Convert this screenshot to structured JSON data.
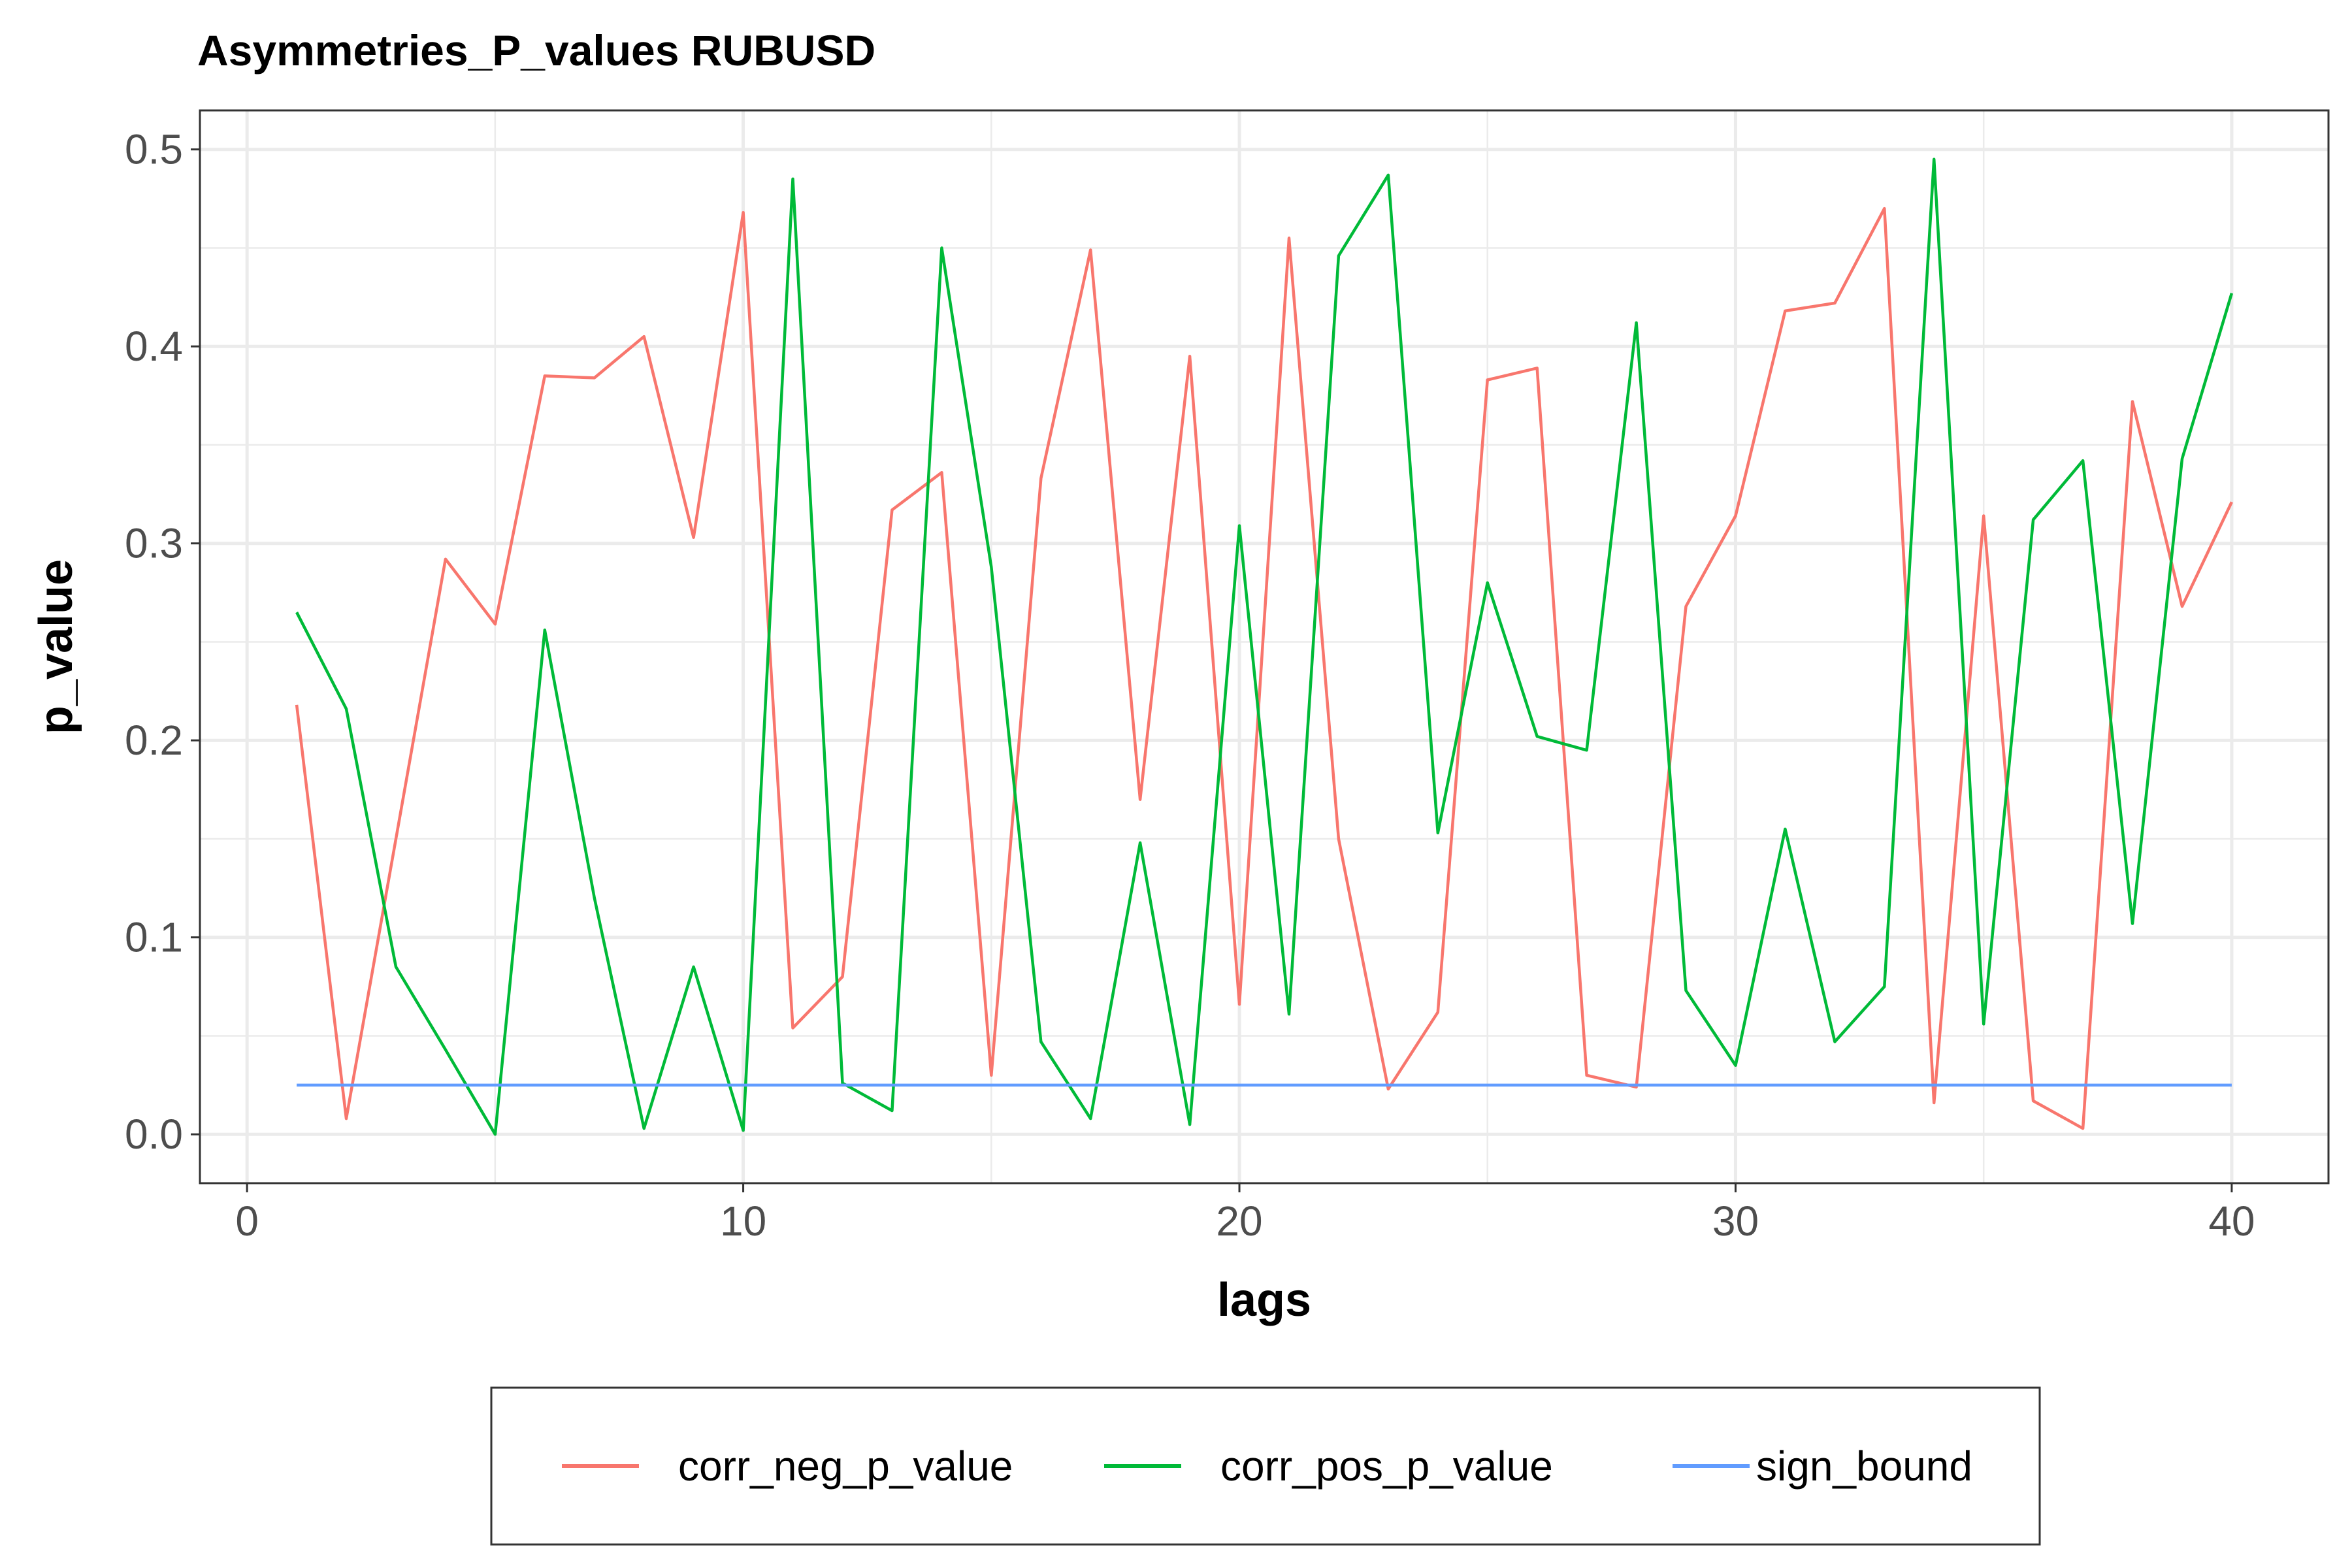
{
  "chart_data": {
    "type": "line",
    "title": "Asymmetries_P_values RUBUSD",
    "xlabel": "lags",
    "ylabel": "p_value",
    "xlim": [
      -0.95,
      41.95
    ],
    "ylim": [
      -0.0248,
      0.5198
    ],
    "x_ticks": [
      0,
      10,
      20,
      30,
      40
    ],
    "x_tick_labels": [
      "0",
      "10",
      "20",
      "30",
      "40"
    ],
    "y_ticks": [
      0.0,
      0.1,
      0.2,
      0.3,
      0.4,
      0.5
    ],
    "y_tick_labels": [
      "0.0",
      "0.1",
      "0.2",
      "0.3",
      "0.4",
      "0.5"
    ],
    "x_minor_ticks": [
      5,
      15,
      25,
      35
    ],
    "y_minor_ticks": [
      0.05,
      0.15,
      0.25,
      0.35,
      0.45
    ],
    "grid": true,
    "legend_position": "bottom",
    "x": [
      1,
      2,
      3,
      4,
      5,
      6,
      7,
      8,
      9,
      10,
      11,
      12,
      13,
      14,
      15,
      16,
      17,
      18,
      19,
      20,
      21,
      22,
      23,
      24,
      25,
      26,
      27,
      28,
      29,
      30,
      31,
      32,
      33,
      34,
      35,
      36,
      37,
      38,
      39,
      40
    ],
    "series": [
      {
        "name": "corr_neg_p_value",
        "color": "#F8766D",
        "values": [
          0.218,
          0.008,
          0.15,
          0.292,
          0.259,
          0.385,
          0.384,
          0.405,
          0.303,
          0.468,
          0.054,
          0.08,
          0.317,
          0.336,
          0.03,
          0.333,
          0.449,
          0.17,
          0.395,
          0.066,
          0.455,
          0.15,
          0.023,
          0.062,
          0.383,
          0.389,
          0.03,
          0.024,
          0.268,
          0.314,
          0.418,
          0.422,
          0.47,
          0.016,
          0.314,
          0.017,
          0.003,
          0.372,
          0.268,
          0.321
        ]
      },
      {
        "name": "corr_pos_p_value",
        "color": "#00BA38",
        "values": [
          0.265,
          0.216,
          0.085,
          0.043,
          0.0,
          0.256,
          0.12,
          0.003,
          0.085,
          0.002,
          0.485,
          0.026,
          0.012,
          0.45,
          0.288,
          0.047,
          0.008,
          0.148,
          0.005,
          0.309,
          0.061,
          0.446,
          0.487,
          0.153,
          0.28,
          0.202,
          0.195,
          0.412,
          0.073,
          0.035,
          0.155,
          0.047,
          0.075,
          0.495,
          0.056,
          0.312,
          0.342,
          0.107,
          0.343,
          0.427
        ]
      },
      {
        "name": "sign_bound",
        "color": "#619CFF",
        "values": [
          0.025,
          0.025,
          0.025,
          0.025,
          0.025,
          0.025,
          0.025,
          0.025,
          0.025,
          0.025,
          0.025,
          0.025,
          0.025,
          0.025,
          0.025,
          0.025,
          0.025,
          0.025,
          0.025,
          0.025,
          0.025,
          0.025,
          0.025,
          0.025,
          0.025,
          0.025,
          0.025,
          0.025,
          0.025,
          0.025,
          0.025,
          0.025,
          0.025,
          0.025,
          0.025,
          0.025,
          0.025,
          0.025,
          0.025,
          0.025
        ]
      }
    ]
  }
}
